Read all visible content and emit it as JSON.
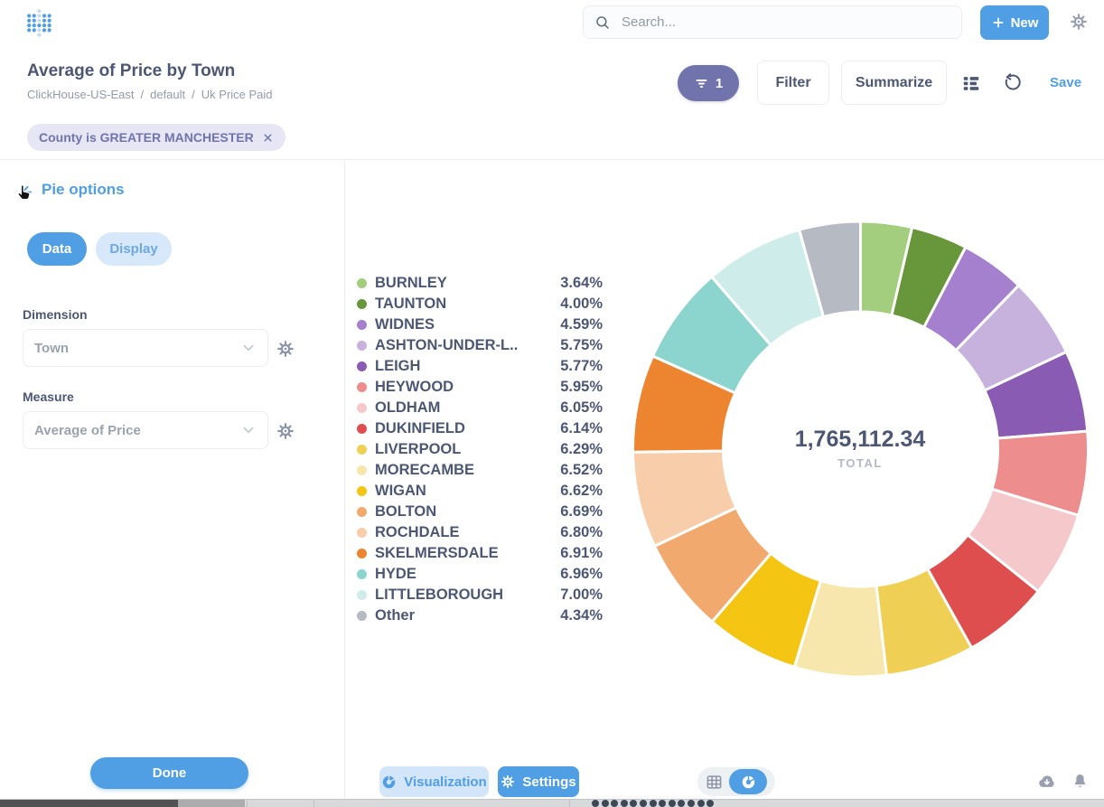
{
  "topbar": {
    "search_placeholder": "Search...",
    "new_label": "New"
  },
  "question_header": {
    "title": "Average of Price by Town",
    "breadcrumb": {
      "database": "ClickHouse-US-East",
      "sep": "/",
      "schema": "default",
      "table": "Uk Price Paid"
    },
    "filter_count": "1",
    "filter_label": "Filter",
    "summarize_label": "Summarize",
    "save_label": "Save"
  },
  "filter_chip": {
    "label": "County is GREATER MANCHESTER"
  },
  "sidebar": {
    "title": "Pie options",
    "tab_data": "Data",
    "tab_display": "Display",
    "dimension_label": "Dimension",
    "dimension_value": "Town",
    "measure_label": "Measure",
    "measure_value": "Average of Price",
    "done_label": "Done"
  },
  "chart_data": {
    "type": "pie",
    "title": "Average of Price by Town",
    "donut": true,
    "legend_position": "left",
    "total_value": "1,765,112.34",
    "total_label": "TOTAL",
    "segments": [
      {
        "label": "BURNLEY",
        "display_percent": "3.64%",
        "percent": 3.64,
        "color": "#A3CE7D"
      },
      {
        "label": "TAUNTON",
        "display_percent": "4.00%",
        "percent": 4.0,
        "color": "#68963B"
      },
      {
        "label": "WIDNES",
        "display_percent": "4.59%",
        "percent": 4.59,
        "color": "#A480CF"
      },
      {
        "label": "ASHTON-UNDER-L..",
        "display_percent": "5.75%",
        "percent": 5.75,
        "color": "#C7B2DE"
      },
      {
        "label": "LEIGH",
        "display_percent": "5.77%",
        "percent": 5.77,
        "color": "#8A5BB3"
      },
      {
        "label": "HEYWOOD",
        "display_percent": "5.95%",
        "percent": 5.95,
        "color": "#EE8D8D"
      },
      {
        "label": "OLDHAM",
        "display_percent": "6.05%",
        "percent": 6.05,
        "color": "#F5C8CB"
      },
      {
        "label": "DUKINFIELD",
        "display_percent": "6.14%",
        "percent": 6.14,
        "color": "#DF4E4E"
      },
      {
        "label": "LIVERPOOL",
        "display_percent": "6.29%",
        "percent": 6.29,
        "color": "#F0CF55"
      },
      {
        "label": "MORECAMBE",
        "display_percent": "6.52%",
        "percent": 6.52,
        "color": "#F8E7AC"
      },
      {
        "label": "WIGAN",
        "display_percent": "6.62%",
        "percent": 6.62,
        "color": "#F4C513"
      },
      {
        "label": "BOLTON",
        "display_percent": "6.69%",
        "percent": 6.69,
        "color": "#F2A96E"
      },
      {
        "label": "ROCHDALE",
        "display_percent": "6.80%",
        "percent": 6.8,
        "color": "#F8CDA9"
      },
      {
        "label": "SKELMERSDALE",
        "display_percent": "6.91%",
        "percent": 6.91,
        "color": "#ED8430"
      },
      {
        "label": "HYDE",
        "display_percent": "6.96%",
        "percent": 6.96,
        "color": "#8BD5CE"
      },
      {
        "label": "LITTLEBOROUGH",
        "display_percent": "7.00%",
        "percent": 7.0,
        "color": "#CEEDEA"
      },
      {
        "label": "Other",
        "display_percent": "4.34%",
        "percent": 4.34,
        "color": "#B6BAC3"
      }
    ]
  },
  "footer": {
    "visualization_label": "Visualization",
    "settings_label": "Settings"
  },
  "theme": {
    "brand_blue": "#509EE3",
    "filter_purple": "#7173AD",
    "text_dark": "#4C5773",
    "text_gray": "#949AAB"
  }
}
